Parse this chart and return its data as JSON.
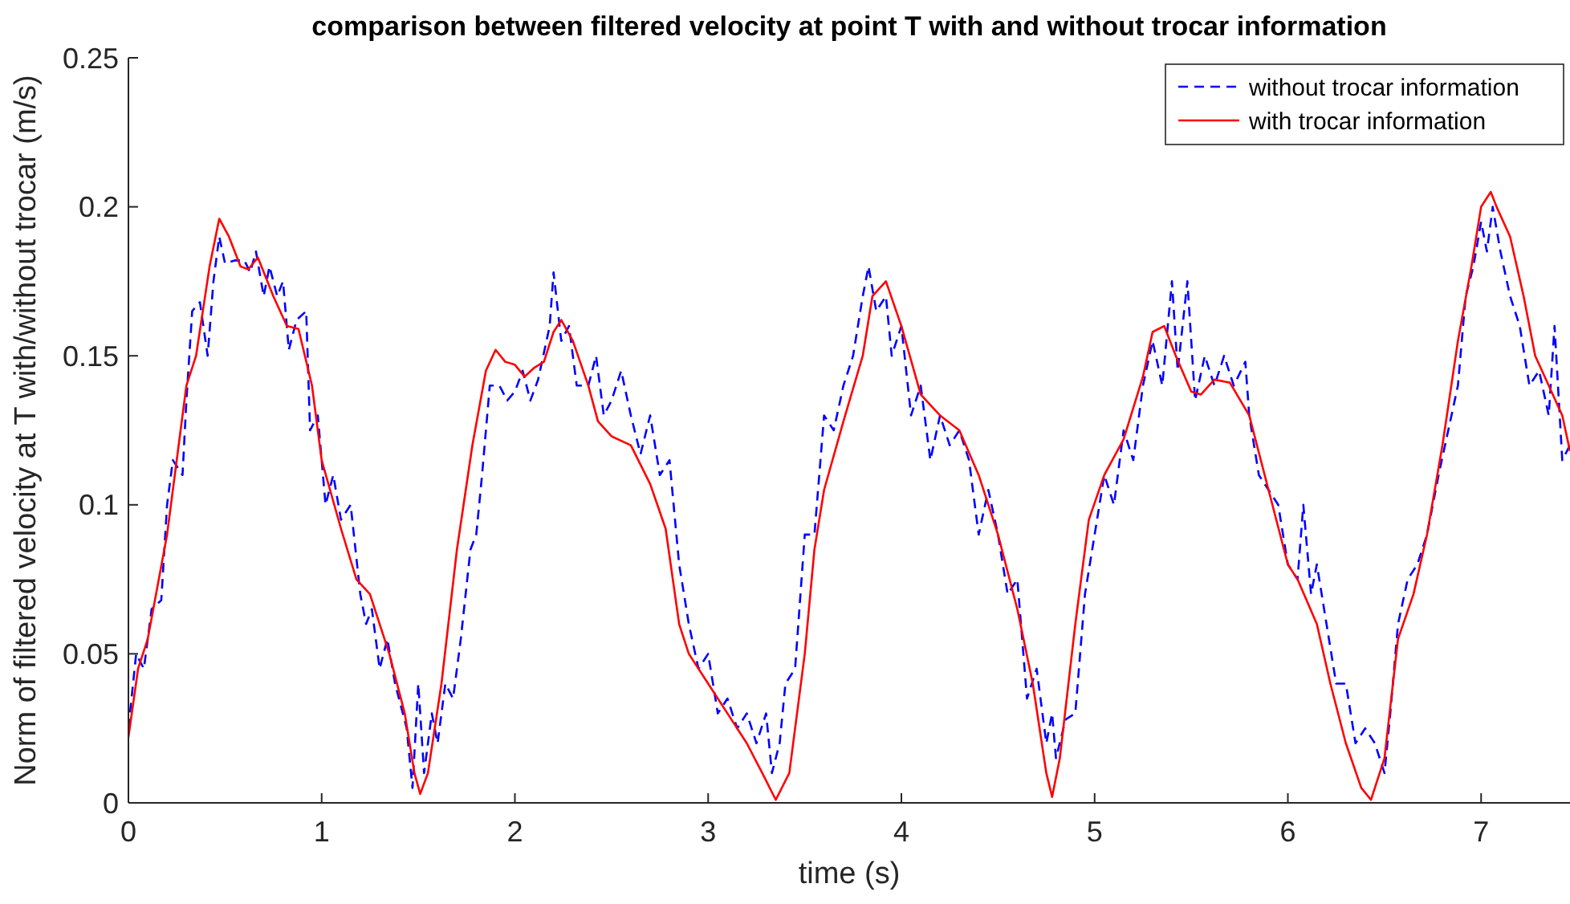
{
  "chart_data": {
    "type": "line",
    "title": "comparison between filtered velocity at point T with and without trocar information",
    "xlabel": "time (s)",
    "ylabel": "Norm of filtered velocity at T with/without trocar (m/s)",
    "xlim": [
      0,
      7.46
    ],
    "xticks": [
      0,
      1,
      2,
      3,
      4,
      5,
      6,
      7
    ],
    "ylim": [
      0,
      0.25
    ],
    "yticks": [
      0,
      0.05,
      0.1,
      0.15,
      0.2,
      0.25
    ],
    "grid": false,
    "legend": "top right",
    "series": [
      {
        "name": "without trocar information",
        "color": "#0000ff",
        "line_style": "dashed",
        "x": [
          0,
          0.04,
          0.08,
          0.12,
          0.17,
          0.2,
          0.23,
          0.28,
          0.3,
          0.33,
          0.37,
          0.41,
          0.44,
          0.47,
          0.5,
          0.55,
          0.6,
          0.63,
          0.66,
          0.7,
          0.73,
          0.77,
          0.8,
          0.83,
          0.87,
          0.92,
          0.94,
          0.98,
          1.02,
          1.06,
          1.1,
          1.15,
          1.2,
          1.23,
          1.26,
          1.3,
          1.34,
          1.38,
          1.44,
          1.47,
          1.5,
          1.53,
          1.57,
          1.6,
          1.64,
          1.68,
          1.72,
          1.77,
          1.8,
          1.83,
          1.87,
          1.92,
          1.96,
          2.0,
          2.04,
          2.08,
          2.12,
          2.18,
          2.2,
          2.24,
          2.28,
          2.32,
          2.38,
          2.42,
          2.46,
          2.5,
          2.55,
          2.6,
          2.65,
          2.7,
          2.75,
          2.8,
          2.85,
          2.9,
          2.95,
          3.0,
          3.05,
          3.1,
          3.15,
          3.2,
          3.25,
          3.3,
          3.33,
          3.37,
          3.4,
          3.45,
          3.5,
          3.55,
          3.6,
          3.65,
          3.7,
          3.75,
          3.8,
          3.83,
          3.87,
          3.92,
          3.95,
          4.0,
          4.05,
          4.1,
          4.15,
          4.2,
          4.25,
          4.3,
          4.35,
          4.4,
          4.45,
          4.5,
          4.55,
          4.6,
          4.65,
          4.7,
          4.75,
          4.78,
          4.8,
          4.85,
          4.9,
          4.95,
          5.0,
          5.05,
          5.1,
          5.15,
          5.2,
          5.25,
          5.3,
          5.35,
          5.4,
          5.43,
          5.48,
          5.52,
          5.57,
          5.62,
          5.67,
          5.72,
          5.78,
          5.8,
          5.85,
          5.9,
          5.95,
          6.0,
          6.05,
          6.08,
          6.12,
          6.15,
          6.2,
          6.25,
          6.3,
          6.35,
          6.4,
          6.45,
          6.5,
          6.53,
          6.57,
          6.62,
          6.67,
          6.72,
          6.78,
          6.83,
          6.88,
          6.92,
          6.96,
          7.0,
          7.03,
          7.06,
          7.1,
          7.15,
          7.2,
          7.25,
          7.3,
          7.35,
          7.38,
          7.42,
          7.46
        ],
        "values": [
          0.025,
          0.05,
          0.045,
          0.065,
          0.068,
          0.1,
          0.115,
          0.11,
          0.135,
          0.165,
          0.168,
          0.15,
          0.175,
          0.19,
          0.181,
          0.182,
          0.182,
          0.178,
          0.185,
          0.17,
          0.18,
          0.17,
          0.175,
          0.152,
          0.162,
          0.165,
          0.125,
          0.13,
          0.1,
          0.11,
          0.095,
          0.1,
          0.07,
          0.06,
          0.065,
          0.045,
          0.055,
          0.04,
          0.025,
          0.005,
          0.04,
          0.01,
          0.03,
          0.02,
          0.04,
          0.035,
          0.055,
          0.085,
          0.09,
          0.11,
          0.14,
          0.14,
          0.135,
          0.138,
          0.145,
          0.135,
          0.142,
          0.16,
          0.178,
          0.155,
          0.16,
          0.14,
          0.14,
          0.15,
          0.13,
          0.135,
          0.145,
          0.13,
          0.117,
          0.13,
          0.11,
          0.115,
          0.08,
          0.06,
          0.045,
          0.05,
          0.03,
          0.035,
          0.025,
          0.03,
          0.02,
          0.03,
          0.01,
          0.02,
          0.04,
          0.045,
          0.09,
          0.09,
          0.13,
          0.125,
          0.14,
          0.15,
          0.17,
          0.18,
          0.165,
          0.17,
          0.15,
          0.16,
          0.13,
          0.14,
          0.115,
          0.13,
          0.12,
          0.125,
          0.115,
          0.09,
          0.105,
          0.09,
          0.07,
          0.075,
          0.035,
          0.045,
          0.02,
          0.03,
          0.015,
          0.028,
          0.03,
          0.07,
          0.09,
          0.11,
          0.1,
          0.125,
          0.115,
          0.14,
          0.155,
          0.14,
          0.175,
          0.145,
          0.175,
          0.135,
          0.15,
          0.14,
          0.15,
          0.14,
          0.148,
          0.13,
          0.11,
          0.105,
          0.1,
          0.08,
          0.075,
          0.1,
          0.07,
          0.08,
          0.06,
          0.04,
          0.04,
          0.02,
          0.025,
          0.02,
          0.01,
          0.03,
          0.06,
          0.075,
          0.08,
          0.09,
          0.11,
          0.125,
          0.14,
          0.17,
          0.18,
          0.195,
          0.185,
          0.2,
          0.185,
          0.17,
          0.16,
          0.14,
          0.145,
          0.13,
          0.16,
          0.115,
          0.12
        ]
      },
      {
        "name": "with trocar information",
        "color": "#ff0000",
        "line_style": "solid",
        "x": [
          0,
          0.05,
          0.1,
          0.2,
          0.27,
          0.3,
          0.35,
          0.42,
          0.47,
          0.52,
          0.58,
          0.62,
          0.67,
          0.75,
          0.82,
          0.88,
          0.95,
          1.0,
          1.1,
          1.18,
          1.25,
          1.35,
          1.43,
          1.48,
          1.51,
          1.55,
          1.62,
          1.7,
          1.78,
          1.85,
          1.9,
          1.95,
          2.0,
          2.05,
          2.1,
          2.15,
          2.2,
          2.24,
          2.3,
          2.38,
          2.43,
          2.5,
          2.6,
          2.7,
          2.78,
          2.85,
          2.9,
          3.0,
          3.1,
          3.2,
          3.28,
          3.35,
          3.42,
          3.5,
          3.55,
          3.6,
          3.7,
          3.8,
          3.85,
          3.92,
          4.0,
          4.1,
          4.2,
          4.3,
          4.4,
          4.5,
          4.6,
          4.68,
          4.75,
          4.78,
          4.82,
          4.9,
          4.97,
          5.05,
          5.15,
          5.25,
          5.3,
          5.36,
          5.42,
          5.5,
          5.55,
          5.62,
          5.7,
          5.8,
          5.9,
          6.0,
          6.05,
          6.15,
          6.22,
          6.3,
          6.38,
          6.43,
          6.5,
          6.57,
          6.65,
          6.72,
          6.8,
          6.88,
          6.95,
          7.0,
          7.05,
          7.08,
          7.15,
          7.22,
          7.28,
          7.35,
          7.42,
          7.46
        ],
        "values": [
          0.022,
          0.045,
          0.055,
          0.09,
          0.125,
          0.14,
          0.15,
          0.18,
          0.196,
          0.19,
          0.18,
          0.179,
          0.183,
          0.17,
          0.16,
          0.159,
          0.14,
          0.115,
          0.092,
          0.075,
          0.07,
          0.05,
          0.03,
          0.01,
          0.003,
          0.01,
          0.04,
          0.085,
          0.12,
          0.145,
          0.152,
          0.148,
          0.147,
          0.143,
          0.146,
          0.148,
          0.158,
          0.162,
          0.155,
          0.14,
          0.128,
          0.123,
          0.12,
          0.107,
          0.092,
          0.06,
          0.05,
          0.04,
          0.03,
          0.02,
          0.01,
          0.001,
          0.01,
          0.05,
          0.085,
          0.105,
          0.128,
          0.15,
          0.17,
          0.175,
          0.16,
          0.137,
          0.13,
          0.125,
          0.11,
          0.09,
          0.065,
          0.04,
          0.01,
          0.002,
          0.015,
          0.06,
          0.095,
          0.11,
          0.122,
          0.143,
          0.158,
          0.16,
          0.15,
          0.138,
          0.137,
          0.142,
          0.141,
          0.13,
          0.105,
          0.08,
          0.075,
          0.06,
          0.04,
          0.02,
          0.005,
          0.001,
          0.015,
          0.055,
          0.07,
          0.09,
          0.12,
          0.155,
          0.18,
          0.2,
          0.205,
          0.2,
          0.19,
          0.17,
          0.15,
          0.14,
          0.13,
          0.118
        ]
      }
    ]
  }
}
